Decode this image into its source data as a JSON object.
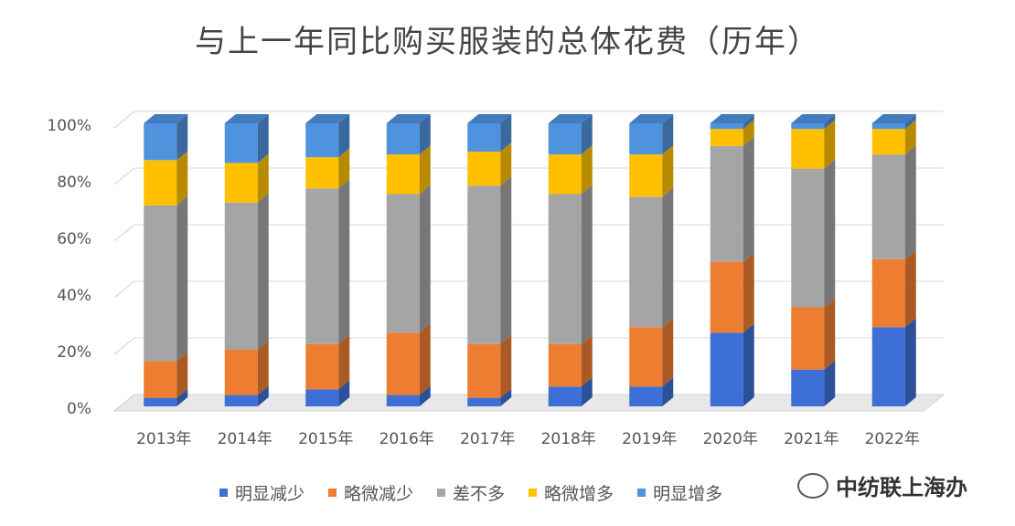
{
  "chart_data": {
    "type": "bar",
    "stacked": true,
    "percent": true,
    "three_d": true,
    "title": "与上一年同比购买服装的总体花费（历年）",
    "categories": [
      "2013年",
      "2014年",
      "2015年",
      "2016年",
      "2017年",
      "2018年",
      "2019年",
      "2020年",
      "2021年",
      "2022年"
    ],
    "series": [
      {
        "name": "明显减少",
        "color": "#3d6fd6",
        "values": [
          3,
          4,
          6,
          4,
          3,
          7,
          7,
          26,
          13,
          28
        ]
      },
      {
        "name": "略微减少",
        "color": "#ed7d31",
        "values": [
          13,
          16,
          16,
          22,
          19,
          15,
          21,
          25,
          22,
          24
        ]
      },
      {
        "name": "差不多",
        "color": "#a5a5a5",
        "values": [
          55,
          52,
          55,
          49,
          56,
          53,
          46,
          41,
          49,
          37
        ]
      },
      {
        "name": "略微增多",
        "color": "#ffc000",
        "values": [
          16,
          14,
          11,
          14,
          12,
          14,
          15,
          6,
          14,
          9
        ]
      },
      {
        "name": "明显增多",
        "color": "#4f92dd",
        "values": [
          13,
          14,
          12,
          11,
          10,
          11,
          11,
          2,
          2,
          2
        ]
      }
    ],
    "ylim": [
      0,
      100
    ],
    "yticks": [
      "0%",
      "20%",
      "40%",
      "60%",
      "80%",
      "100%"
    ],
    "grid": true,
    "legend": "bottom"
  },
  "watermark": "中纺联上海办"
}
